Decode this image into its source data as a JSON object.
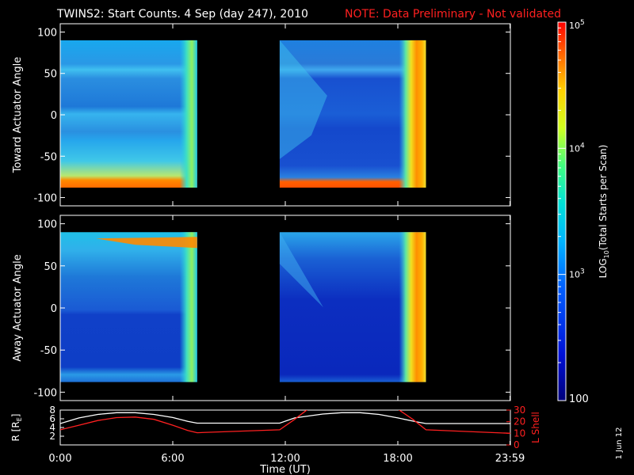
{
  "header": {
    "title": "TWINS2: Start Counts.  4 Sep (day 247), 2010",
    "note": "NOTE: Data Preliminary - Not validated"
  },
  "side_date": "1 Jun 12",
  "colors": {
    "background": "#000000",
    "note": "#ff2020",
    "r_line": "#ffffff",
    "l_line": "#ff2020"
  },
  "chart_data": [
    {
      "type": "heatmap",
      "name": "toward",
      "ylabel": "Toward Actuator Angle",
      "x_range_hours": [
        0,
        24
      ],
      "ylim": [
        -110,
        110
      ],
      "yticks": [
        "100",
        "50",
        "0",
        "-50",
        "-100"
      ],
      "ytick_values": [
        100,
        50,
        0,
        -50,
        -100
      ],
      "data_y_range": [
        -88,
        90
      ],
      "segments": [
        {
          "x_start": 0.0,
          "x_end": 7.3
        },
        {
          "x_start": 11.7,
          "x_end": 19.5
        }
      ],
      "color_scale": {
        "log": true,
        "min": 100,
        "max": 100000
      }
    },
    {
      "type": "heatmap",
      "name": "away",
      "ylabel": "Away Actuator Angle",
      "x_range_hours": [
        0,
        24
      ],
      "ylim": [
        -110,
        110
      ],
      "yticks": [
        "100",
        "50",
        "0",
        "-50",
        "-100"
      ],
      "ytick_values": [
        100,
        50,
        0,
        -50,
        -100
      ],
      "data_y_range": [
        -88,
        90
      ],
      "segments": [
        {
          "x_start": 0.0,
          "x_end": 7.3
        },
        {
          "x_start": 11.7,
          "x_end": 19.5
        }
      ],
      "color_scale": {
        "log": true,
        "min": 100,
        "max": 100000
      }
    },
    {
      "type": "line",
      "name": "orbit",
      "xlabel": "Time (UT)",
      "xticks": [
        "0:00",
        "6:00",
        "12:00",
        "18:00",
        "23:59"
      ],
      "xtick_values": [
        0,
        6,
        12,
        18,
        23.98
      ],
      "left_axis": {
        "label": "R [R",
        "label_sub": "E",
        "label_end": "]",
        "ylim": [
          0,
          8
        ],
        "ticks": [
          "8",
          "6",
          "4",
          "2"
        ],
        "tick_values": [
          8,
          6,
          4,
          2
        ]
      },
      "right_axis": {
        "label": "L Shell",
        "ylim": [
          0,
          30
        ],
        "ticks": [
          "30",
          "20",
          "10",
          "0"
        ],
        "tick_values": [
          30,
          20,
          10,
          0
        ]
      },
      "series": [
        {
          "axis": "left",
          "x": [
            0,
            1,
            2,
            3,
            4,
            5,
            6,
            6.8,
            7.3,
            8,
            10,
            11.7,
            12.5,
            14,
            15,
            16,
            17,
            18,
            19,
            19.5,
            21,
            23,
            24
          ],
          "values": [
            4.9,
            6.2,
            7.0,
            7.4,
            7.4,
            7.0,
            6.3,
            5.4,
            5.0,
            5.0,
            5.0,
            5.0,
            6.2,
            7.1,
            7.4,
            7.4,
            7.0,
            6.2,
            5.3,
            4.9,
            4.9,
            4.9,
            4.9
          ]
        },
        {
          "axis": "right",
          "x": [
            0,
            1,
            2,
            3,
            4,
            5,
            6,
            6.8,
            7.3,
            9,
            11.7,
            12.5,
            13.3,
            null,
            17.9,
            18.8,
            19.5,
            21,
            24
          ],
          "values": [
            13,
            17,
            21,
            23.5,
            24,
            22,
            17,
            12.5,
            10.5,
            11.5,
            13,
            22,
            32,
            null,
            32,
            22,
            13,
            12,
            10
          ]
        }
      ]
    },
    {
      "type": "colorbar",
      "label": "LOG",
      "label_sub": "10",
      "label_tail": "(Total Starts per Scan)",
      "log": true,
      "ticks": [
        {
          "base": "10",
          "exp": "5",
          "value": 100000
        },
        {
          "base": "10",
          "exp": "4",
          "value": 10000
        },
        {
          "base": "10",
          "exp": "3",
          "value": 1000
        },
        {
          "base": "100",
          "exp": "",
          "value": 100
        }
      ]
    }
  ]
}
